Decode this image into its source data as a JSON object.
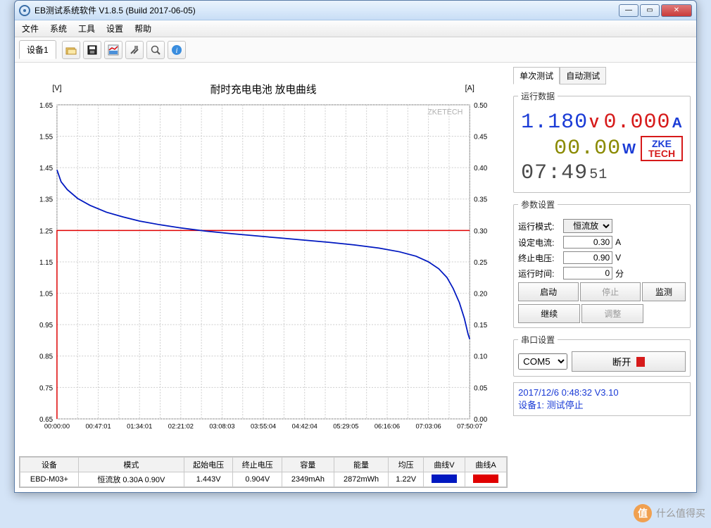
{
  "window": {
    "title": "EB测试系统软件 V1.8.5 (Build 2017-06-05)"
  },
  "menubar": [
    "文件",
    "系统",
    "工具",
    "设置",
    "帮助"
  ],
  "toolbar": {
    "device_tab": "设备1",
    "icons": [
      "open",
      "save",
      "chart",
      "tools",
      "search",
      "info"
    ]
  },
  "chart": {
    "title": "耐时充电电池 放电曲线",
    "watermark": "ZKETECH",
    "y_left_label": "[V]",
    "y_right_label": "[A]",
    "y_left": {
      "min": 0.65,
      "max": 1.65,
      "step": 0.1,
      "ticks": [
        "0.65",
        "0.75",
        "0.85",
        "0.95",
        "1.05",
        "1.15",
        "1.25",
        "1.35",
        "1.45",
        "1.55",
        "1.65"
      ]
    },
    "y_right": {
      "min": 0.0,
      "max": 0.5,
      "step": 0.05,
      "ticks": [
        "0.00",
        "0.05",
        "0.10",
        "0.15",
        "0.20",
        "0.25",
        "0.30",
        "0.35",
        "0.40",
        "0.45",
        "0.50"
      ]
    },
    "x_ticks": [
      "00:00:00",
      "00:47:01",
      "01:34:01",
      "02:21:02",
      "03:08:03",
      "03:55:04",
      "04:42:04",
      "05:29:05",
      "06:16:06",
      "07:03:06",
      "07:50:07"
    ],
    "voltage_color": "#0018c0",
    "current_color": "#e00000",
    "grid_color": "#cccccc",
    "border_color": "#808080",
    "current_level": 0.3,
    "voltage_points": [
      [
        0.0,
        1.443
      ],
      [
        0.01,
        1.405
      ],
      [
        0.025,
        1.38
      ],
      [
        0.05,
        1.352
      ],
      [
        0.08,
        1.33
      ],
      [
        0.12,
        1.308
      ],
      [
        0.16,
        1.293
      ],
      [
        0.2,
        1.28
      ],
      [
        0.25,
        1.268
      ],
      [
        0.3,
        1.258
      ],
      [
        0.36,
        1.248
      ],
      [
        0.42,
        1.24
      ],
      [
        0.48,
        1.233
      ],
      [
        0.54,
        1.226
      ],
      [
        0.6,
        1.219
      ],
      [
        0.66,
        1.212
      ],
      [
        0.72,
        1.204
      ],
      [
        0.78,
        1.194
      ],
      [
        0.83,
        1.182
      ],
      [
        0.87,
        1.168
      ],
      [
        0.9,
        1.15
      ],
      [
        0.925,
        1.128
      ],
      [
        0.945,
        1.1
      ],
      [
        0.96,
        1.065
      ],
      [
        0.975,
        1.02
      ],
      [
        0.987,
        0.97
      ],
      [
        0.996,
        0.92
      ],
      [
        1.0,
        0.904
      ]
    ]
  },
  "table": {
    "headers": [
      "设备",
      "模式",
      "起始电压",
      "终止电压",
      "容量",
      "能量",
      "均压",
      "曲线V",
      "曲线A"
    ],
    "row": {
      "device": "EBD-M03+",
      "mode": "恒流放  0.30A  0.90V",
      "vstart": "1.443V",
      "vend": "0.904V",
      "capacity": "2349mAh",
      "energy": "2872mWh",
      "vavg": "1.22V",
      "colorV": "#0018c0",
      "colorA": "#e00000"
    }
  },
  "right": {
    "tab_single": "单次测试",
    "tab_auto": "自动测试",
    "display_legend": "运行数据",
    "voltage": "1.180",
    "voltage_unit": "V",
    "current": "0.000",
    "current_unit": "A",
    "power": "00.00",
    "power_unit": "W",
    "time": "07:49",
    "time_sec": "51",
    "logo_top": "ZKE",
    "logo_bot": "TECH",
    "params_legend": "参数设置",
    "mode_label": "运行模式:",
    "mode_value": "恒流放",
    "set_current_label": "设定电流:",
    "set_current": "0.30",
    "set_current_unit": "A",
    "end_voltage_label": "终止电压:",
    "end_voltage": "0.90",
    "end_voltage_unit": "V",
    "run_time_label": "运行时间:",
    "run_time": "0",
    "run_time_unit": "分",
    "btn_start": "启动",
    "btn_stop": "停止",
    "btn_monitor": "监测",
    "btn_continue": "继续",
    "btn_adjust": "调整",
    "serial_legend": "串口设置",
    "com_port": "COM5",
    "btn_disconnect": "断开",
    "status_line1": "2017/12/6 0:48:32  V3.10",
    "status_line2": "设备1: 测试停止"
  },
  "footer_watermark": "什么值得买"
}
